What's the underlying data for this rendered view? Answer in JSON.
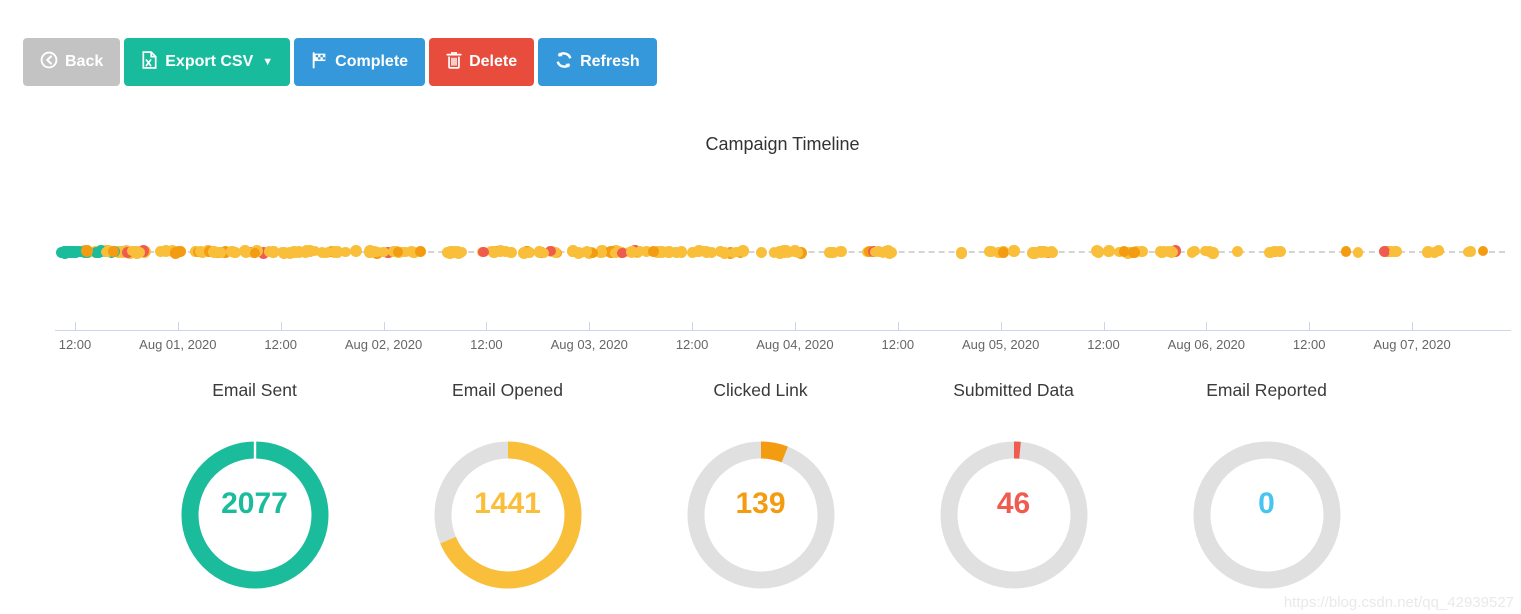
{
  "toolbar": {
    "back": {
      "label": "Back",
      "color": "#c3c3c3"
    },
    "export_csv": {
      "label": "Export CSV",
      "color": "#18bc9c"
    },
    "complete": {
      "label": "Complete",
      "color": "#3498db"
    },
    "delete": {
      "label": "Delete",
      "color": "#e74c3c"
    },
    "refresh": {
      "label": "Refresh",
      "color": "#3498db"
    }
  },
  "chart_data": [
    {
      "type": "scatter",
      "title": "Campaign Timeline",
      "xlabel": "",
      "ylabel": "",
      "grid": false,
      "legend_position": "none",
      "x_tick_labels": [
        "12:00",
        "Aug 01, 2020",
        "12:00",
        "Aug 02, 2020",
        "12:00",
        "Aug 03, 2020",
        "12:00",
        "Aug 04, 2020",
        "12:00",
        "Aug 05, 2020",
        "12:00",
        "Aug 06, 2020",
        "12:00",
        "Aug 07, 2020"
      ],
      "axis_color": "#ccd6eb",
      "label_color": "#666666",
      "connector_style": "dashed",
      "event_colors": {
        "email_sent": "#1abc9c",
        "email_opened": "#f9bf3b",
        "clicked_link": "#f39c12",
        "submitted_data": "#f05b4f"
      },
      "seed": 1337,
      "dot_clusters": [
        {
          "from": 0.0,
          "to": 0.02,
          "count": 30,
          "clump": false,
          "weights": {
            "email_sent": 0.88,
            "email_opened": 0.12
          }
        },
        {
          "from": 0.016,
          "to": 0.055,
          "count": 24,
          "clump": false,
          "weights": {
            "email_sent": 0.22,
            "email_opened": 0.56,
            "clicked_link": 0.14,
            "submitted_data": 0.08
          }
        },
        {
          "from": 0.05,
          "to": 0.25,
          "count": 98,
          "clump": false,
          "weights": {
            "email_opened": 0.76,
            "clicked_link": 0.18,
            "submitted_data": 0.06
          }
        },
        {
          "from": 0.25,
          "to": 0.33,
          "count": 26,
          "clump": true,
          "weights": {
            "email_opened": 0.8,
            "clicked_link": 0.14,
            "submitted_data": 0.06
          }
        },
        {
          "from": 0.33,
          "to": 0.52,
          "count": 78,
          "clump": false,
          "weights": {
            "email_opened": 0.78,
            "clicked_link": 0.16,
            "submitted_data": 0.06
          }
        },
        {
          "from": 0.52,
          "to": 0.75,
          "count": 50,
          "clump": true,
          "weights": {
            "email_opened": 0.8,
            "clicked_link": 0.14,
            "submitted_data": 0.06
          }
        },
        {
          "from": 0.75,
          "to": 1.0,
          "count": 42,
          "clump": true,
          "weights": {
            "email_opened": 0.8,
            "clicked_link": 0.12,
            "submitted_data": 0.08
          }
        }
      ]
    },
    {
      "type": "pie",
      "variant": "donut-stats",
      "total": 2077,
      "track_color": "#e0e0e0",
      "stats": [
        {
          "label": "Email Sent",
          "value": 2077,
          "color": "#1abc9c"
        },
        {
          "label": "Email Opened",
          "value": 1441,
          "color": "#f9bf3b"
        },
        {
          "label": "Clicked Link",
          "value": 139,
          "color": "#f39c12"
        },
        {
          "label": "Submitted Data",
          "value": 46,
          "color": "#f05b4f"
        },
        {
          "label": "Email Reported",
          "value": 0,
          "color": "#45c5f0"
        }
      ]
    }
  ],
  "watermark": "https://blog.csdn.net/qq_42939527"
}
